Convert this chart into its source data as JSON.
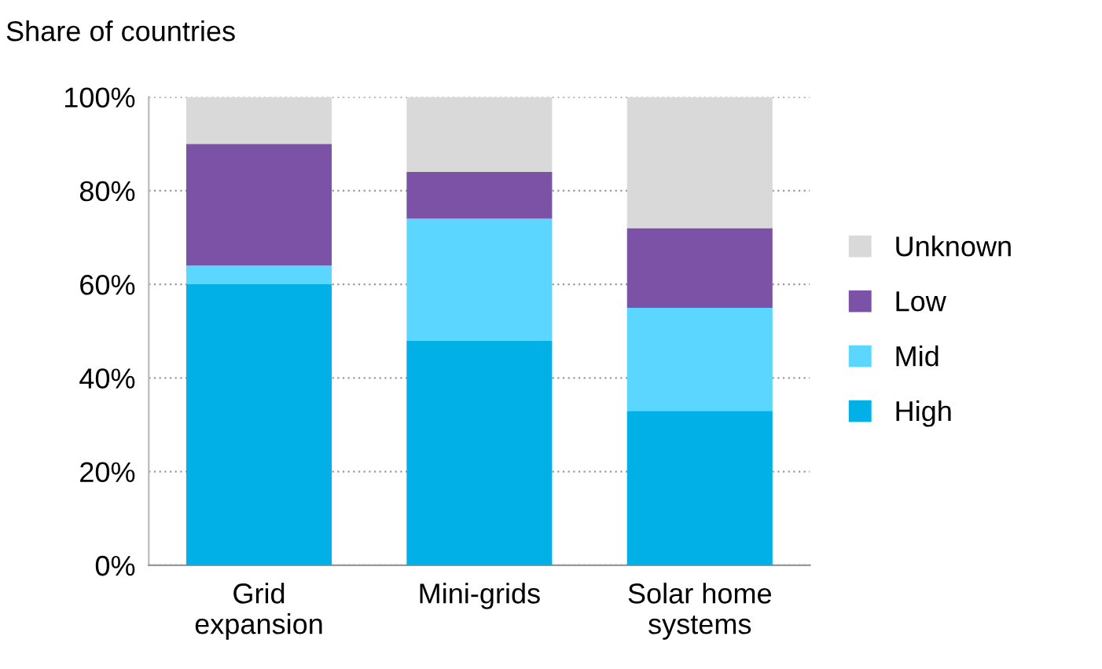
{
  "chart_data": {
    "type": "bar",
    "stacked": true,
    "ylabel": "Share of countries",
    "categories": [
      "Grid\nexpansion",
      "Mini-grids",
      "Solar home\nsystems"
    ],
    "series": [
      {
        "name": "High",
        "color": "#00b0e6",
        "values": [
          60,
          48,
          33
        ]
      },
      {
        "name": "Mid",
        "color": "#5bd7ff",
        "values": [
          4,
          26,
          22
        ]
      },
      {
        "name": "Low",
        "color": "#7b52a6",
        "values": [
          26,
          10,
          17
        ]
      },
      {
        "name": "Unknown",
        "color": "#d9d9d9",
        "values": [
          10,
          16,
          28
        ]
      }
    ],
    "ylim": [
      0,
      100
    ],
    "yticks": [
      {
        "value": 0,
        "label": "0%"
      },
      {
        "value": 20,
        "label": "20%"
      },
      {
        "value": 40,
        "label": "40%"
      },
      {
        "value": 60,
        "label": "60%"
      },
      {
        "value": 80,
        "label": "80%"
      },
      {
        "value": 100,
        "label": "100%"
      }
    ],
    "grid": "y",
    "legend": "right"
  }
}
